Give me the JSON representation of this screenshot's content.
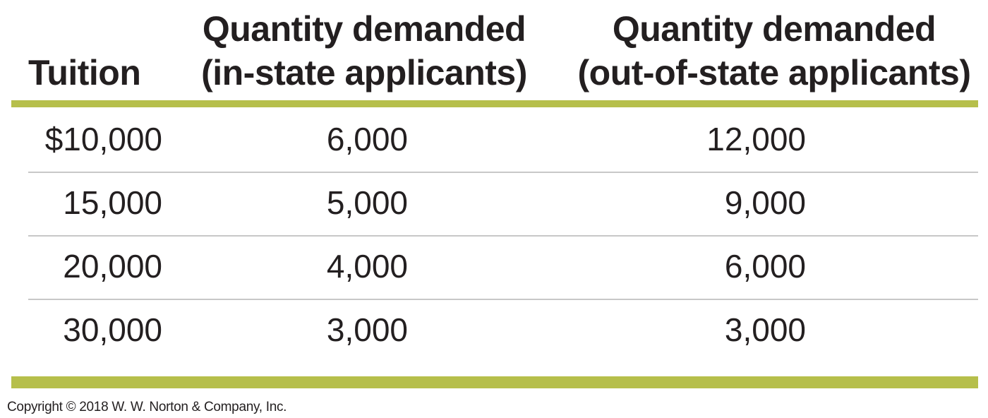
{
  "table": {
    "headers": {
      "tuition": "Tuition",
      "in_state": [
        "Quantity demanded",
        "(in-state applicants)"
      ],
      "out_of_state": [
        "Quantity demanded",
        "(out-of-state applicants)"
      ]
    },
    "rows": [
      {
        "tuition": "$10,000",
        "in_state": "6,000",
        "out_of_state": "12,000"
      },
      {
        "tuition": "15,000",
        "in_state": "5,000",
        "out_of_state": "9,000"
      },
      {
        "tuition": "20,000",
        "in_state": "4,000",
        "out_of_state": "6,000"
      },
      {
        "tuition": "30,000",
        "in_state": "3,000",
        "out_of_state": "3,000"
      }
    ],
    "accent_color": "#b6bf4b",
    "divider_color": "#c8c8c8"
  },
  "copyright": "Copyright © 2018 W. W. Norton & Company, Inc."
}
